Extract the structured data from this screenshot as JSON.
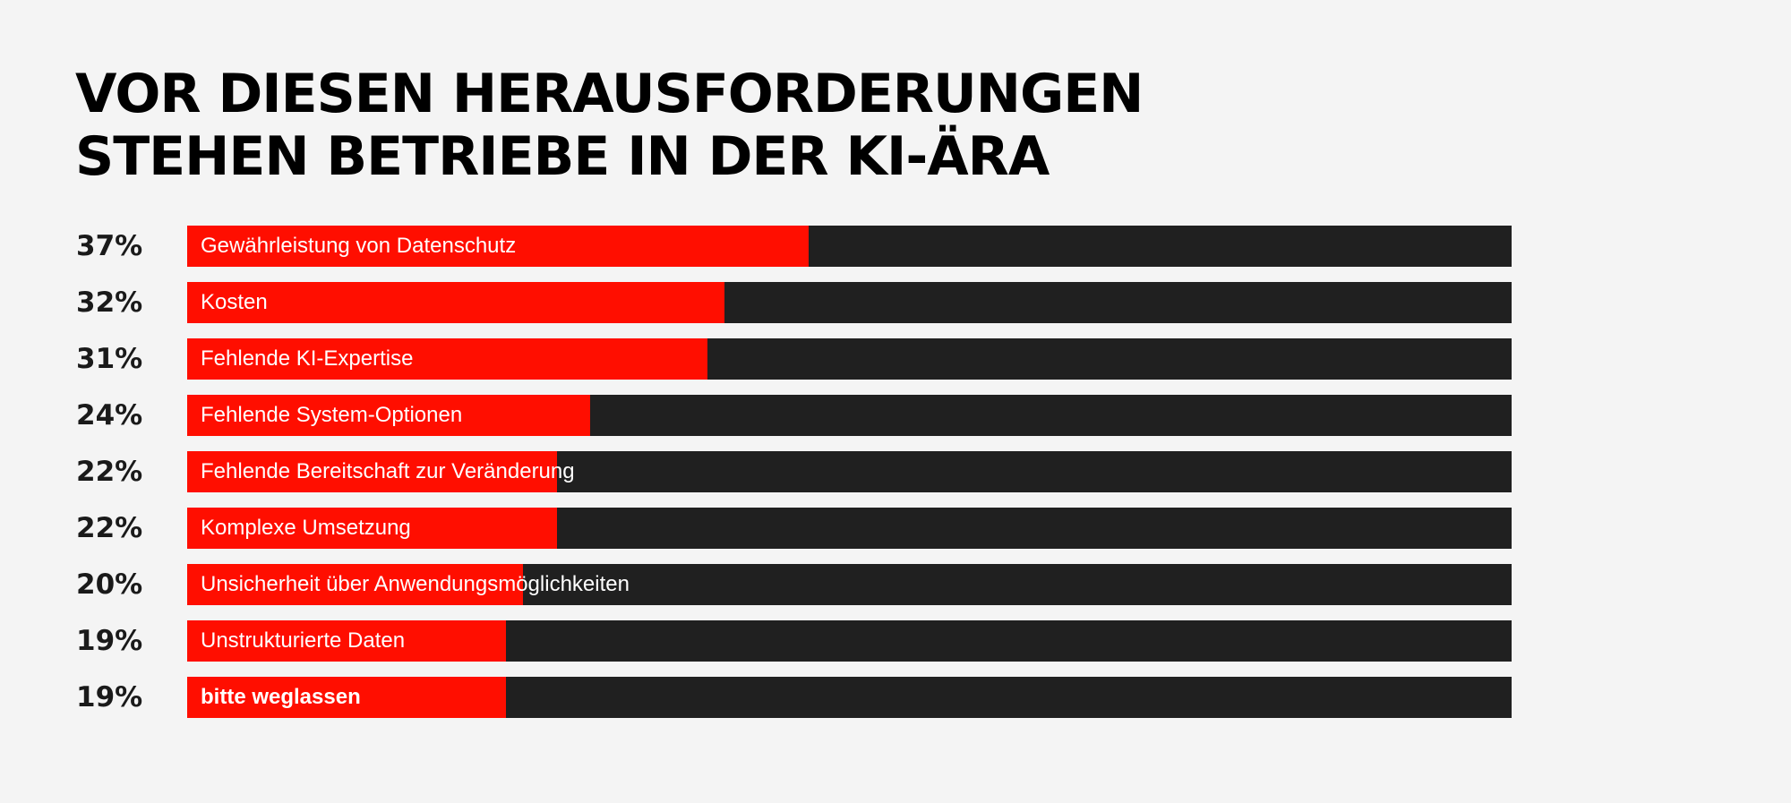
{
  "title": {
    "line1": "VOR DIESEN HERAUSFORDERUNGEN",
    "line2": "STEHEN BETRIEBE IN DER KI-ÄRA"
  },
  "colors": {
    "background": "#f4f4f4",
    "bar_fill": "#ff0e00",
    "bar_track": "#202020",
    "title": "#000000",
    "percent_text": "#1a1a1a",
    "label_text": "#ffffff"
  },
  "chart_data": {
    "type": "bar",
    "orientation": "horizontal",
    "title": "VOR DIESEN HERAUSFORDERUNGEN STEHEN BETRIEBE IN DER KI-ÄRA",
    "xlim": [
      0,
      100
    ],
    "grid": false,
    "legend": "none",
    "categories": [
      "Gewährleistung von Datenschutz",
      "Kosten",
      "Fehlende KI-Expertise",
      "Fehlende System-Optionen",
      "Fehlende Bereitschaft zur Veränderung",
      "Komplexe Umsetzung",
      "Unsicherheit über Anwendungsmöglichkeiten",
      "Unstrukturierte Daten",
      "bitte weglassen"
    ],
    "values": [
      37,
      32,
      31,
      24,
      22,
      22,
      20,
      19,
      19
    ],
    "value_labels": [
      "37%",
      "32%",
      "31%",
      "24%",
      "22%",
      "22%",
      "20%",
      "19%",
      "19%"
    ],
    "bold_labels": [
      false,
      false,
      false,
      false,
      false,
      false,
      false,
      false,
      true
    ]
  }
}
